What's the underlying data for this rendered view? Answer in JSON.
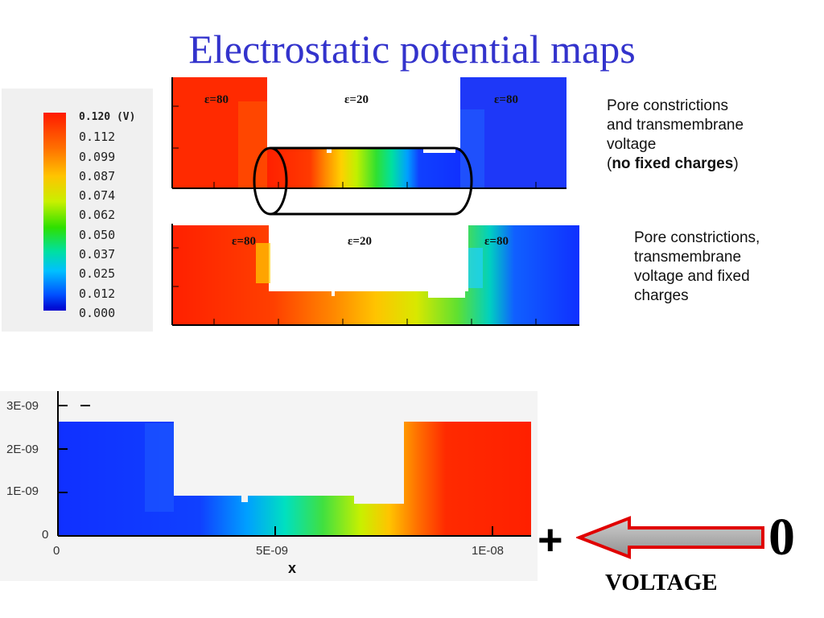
{
  "slide": {
    "title": "Electrostatic potential maps"
  },
  "legend": {
    "unit_label": "0.120  (V)",
    "values": [
      "0.112",
      "0.099",
      "0.087",
      "0.074",
      "0.062",
      "0.050",
      "0.037",
      "0.025",
      "0.012",
      "0.000"
    ],
    "top_color": "#ff1a00",
    "bottom_color": "#0000cc"
  },
  "map1": {
    "eps_left": "ε=80",
    "eps_center": "ε=20",
    "eps_right": "ε=80"
  },
  "map2": {
    "eps_left": "ε=80",
    "eps_center": "ε=20",
    "eps_right": "ε=80"
  },
  "notes": {
    "first_lines": [
      "Pore constrictions",
      "and transmembrane",
      "voltage"
    ],
    "first_open": "(",
    "first_bold": "no fixed charges",
    "first_close": ")",
    "second_lines": [
      "Pore constrictions,",
      "transmembrane",
      "voltage and fixed",
      "charges"
    ]
  },
  "map3": {
    "y_ticks": [
      "3E-09",
      "2E-09",
      "1E-09",
      "0"
    ],
    "x_ticks": [
      "0",
      "5E-09",
      "1E-08"
    ],
    "x_axis_label": "x"
  },
  "voltage": {
    "plus": "+",
    "zero": "0",
    "label": "VOLTAGE",
    "arrow_fill": "#a0a0a0",
    "arrow_outline": "#e00000"
  }
}
